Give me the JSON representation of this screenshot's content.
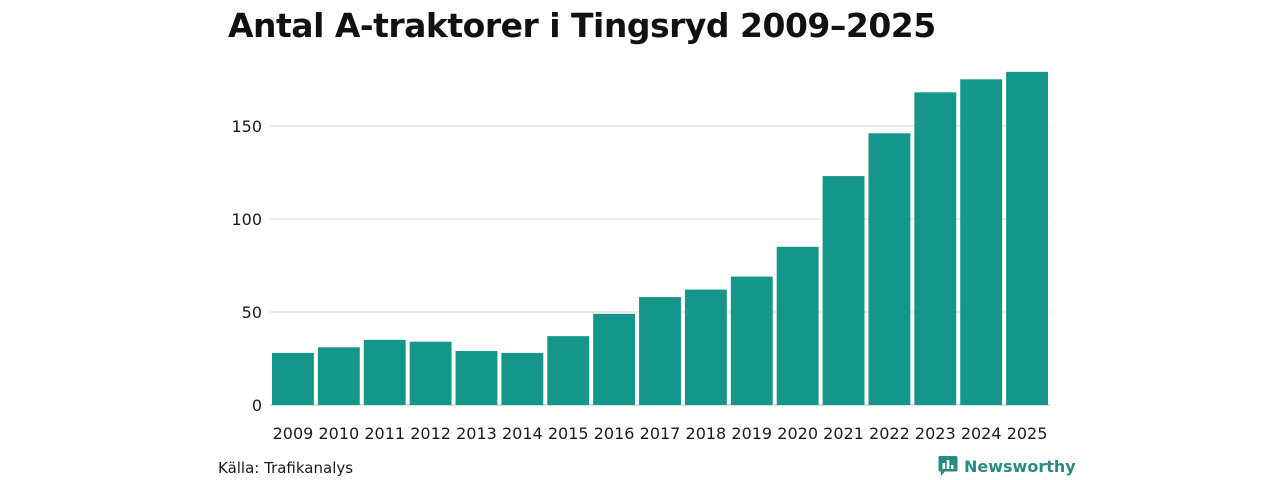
{
  "colors": {
    "bar": "#15968a",
    "grid": "#d9d9d9",
    "brand": "#2a8b83"
  },
  "footer": {
    "source": "Källa: Trafikanalys",
    "brand_name": "Newsworthy",
    "brand_icon": "newsworthy-logo-icon"
  },
  "chart_data": {
    "type": "bar",
    "title": "Antal A-traktorer i Tingsryd 2009–2025",
    "xlabel": "",
    "ylabel": "",
    "categories": [
      "2009",
      "2010",
      "2011",
      "2012",
      "2013",
      "2014",
      "2015",
      "2016",
      "2017",
      "2018",
      "2019",
      "2020",
      "2021",
      "2022",
      "2023",
      "2024",
      "2025"
    ],
    "values": [
      28,
      31,
      35,
      34,
      29,
      28,
      37,
      49,
      58,
      62,
      69,
      85,
      123,
      146,
      168,
      175,
      179
    ],
    "ylim": [
      0,
      180
    ],
    "yticks": [
      0,
      50,
      100,
      150
    ],
    "grid": "horizontal",
    "legend": "none"
  }
}
